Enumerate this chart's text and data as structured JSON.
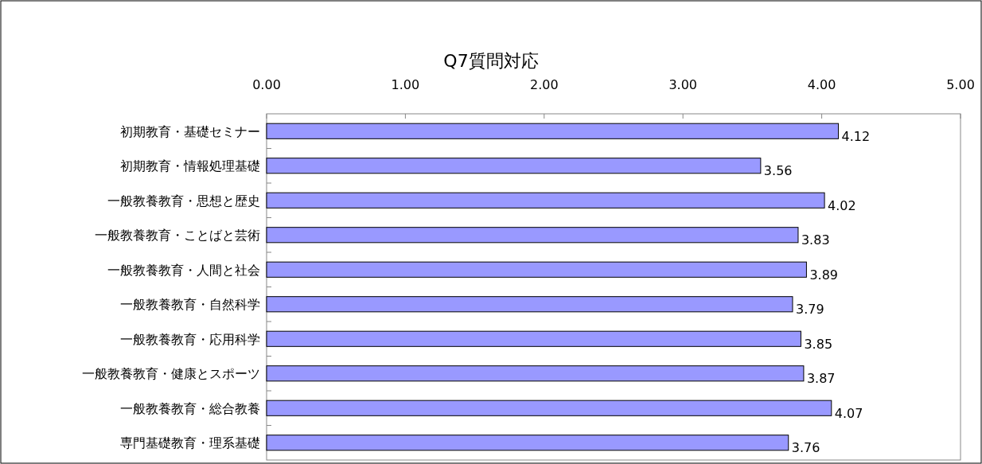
{
  "chart_data": {
    "type": "bar",
    "orientation": "horizontal",
    "title": "Q7質問対応",
    "categories": [
      "初期教育・基礎セミナー",
      "初期教育・情報処理基礎",
      "一般教養教育・思想と歴史",
      "一般教養教育・ことばと芸術",
      "一般教養教育・人間と社会",
      "一般教養教育・自然科学",
      "一般教養教育・応用科学",
      "一般教養教育・健康とスポーツ",
      "一般教養教育・総合教養",
      "専門基礎教育・理系基礎"
    ],
    "values": [
      4.12,
      3.56,
      4.02,
      3.83,
      3.89,
      3.79,
      3.85,
      3.87,
      4.07,
      3.76
    ],
    "color": "#9999ff",
    "data_labels": true,
    "xlim": [
      0,
      5
    ],
    "xticks": [
      {
        "value": 0,
        "label": "0.00"
      },
      {
        "value": 1,
        "label": "1.00"
      },
      {
        "value": 2,
        "label": "2.00"
      },
      {
        "value": 3,
        "label": "3.00"
      },
      {
        "value": 4,
        "label": "4.00"
      },
      {
        "value": 5,
        "label": "5.00"
      }
    ],
    "grid": false
  }
}
